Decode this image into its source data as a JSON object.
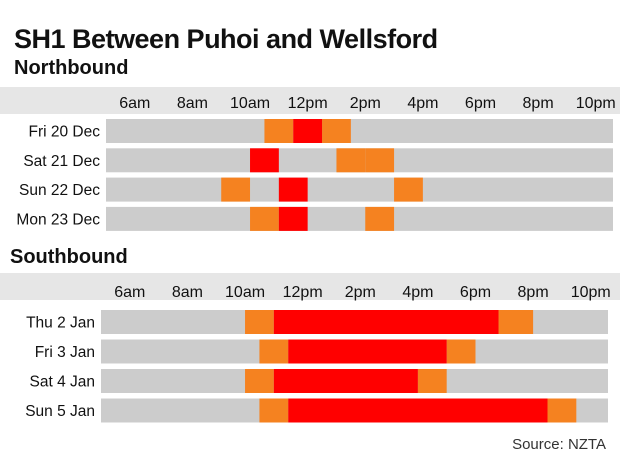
{
  "title": "SH1 Between Puhoi and Wellsford",
  "subtitle": "Northbound",
  "source": "Source: NZTA",
  "colors": {
    "header_band": "#e6e6e6",
    "track": "#cccccc",
    "congested": "#ff0000",
    "moderate": "#f58220"
  },
  "chart_data": [
    {
      "type": "bar",
      "title": "Northbound",
      "x_unit": "hour",
      "tick_hours": [
        6,
        8,
        10,
        12,
        14,
        16,
        18,
        20,
        22
      ],
      "tick_labels": [
        "6am",
        "8am",
        "10am",
        "12pm",
        "2pm",
        "4pm",
        "6pm",
        "8pm",
        "10pm"
      ],
      "xlim": [
        5,
        22.6
      ],
      "grid": false,
      "legend": "none",
      "categories": [
        "Fri 20 Dec",
        "Sat 21 Dec",
        "Sun 22 Dec",
        "Mon 23 Dec"
      ],
      "series": [
        {
          "level": "moderate",
          "ranges": [
            [
              10.5,
              11.5
            ],
            [
              12.5,
              13.5
            ],
            [
              13.0,
              14.0
            ],
            [
              14.0,
              15.0
            ],
            [
              9.0,
              10.0
            ],
            [
              15.0,
              16.0
            ],
            [
              10.0,
              11.0
            ],
            [
              14.0,
              15.0
            ]
          ]
        },
        {
          "level": "congested",
          "ranges": [
            [
              11.5,
              12.5
            ],
            [
              10.0,
              11.0
            ],
            [
              11.0,
              12.0
            ],
            [
              11.0,
              12.0
            ]
          ]
        }
      ]
    },
    {
      "type": "bar",
      "title": "Southbound",
      "x_unit": "hour",
      "tick_hours": [
        6,
        8,
        10,
        12,
        14,
        16,
        18,
        20,
        22
      ],
      "tick_labels": [
        "6am",
        "8am",
        "10am",
        "12pm",
        "2pm",
        "4pm",
        "6pm",
        "8pm",
        "10pm"
      ],
      "xlim": [
        5,
        22.6
      ],
      "grid": false,
      "legend": "none",
      "categories": [
        "Thu  2 Jan",
        "Fri 3 Jan",
        "Sat 4 Jan",
        "Sun 5 Jan"
      ],
      "series": [
        {
          "level": "moderate",
          "ranges": [
            [
              10.0,
              11.0
            ],
            [
              18.8,
              20.0
            ],
            [
              10.5,
              11.5
            ],
            [
              17.0,
              18.0
            ],
            [
              10.0,
              11.0
            ],
            [
              16.0,
              17.0
            ],
            [
              10.5,
              11.5
            ],
            [
              20.5,
              21.5
            ]
          ]
        },
        {
          "level": "congested",
          "ranges": [
            [
              11.0,
              18.8
            ],
            [
              11.5,
              17.0
            ],
            [
              11.0,
              16.0
            ],
            [
              11.5,
              20.5
            ]
          ]
        }
      ]
    }
  ]
}
